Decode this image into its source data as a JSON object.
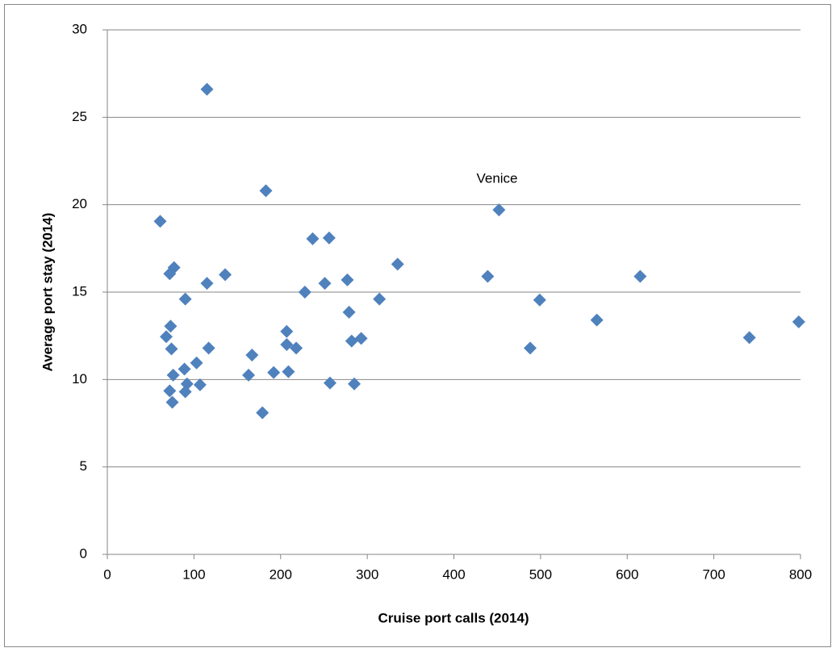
{
  "chart_data": {
    "type": "scatter",
    "x_label": "Cruise port calls (2014)",
    "y_label": "Average port stay (2014)",
    "annotation": "Venice",
    "color": "#4f81bd",
    "grid": true,
    "xlim": [
      0,
      800
    ],
    "xticks": [
      0,
      100,
      200,
      300,
      400,
      500,
      600,
      700,
      800
    ],
    "ylim": [
      0,
      30
    ],
    "yticks": [
      0,
      5,
      10,
      15,
      20,
      25,
      30
    ],
    "x": [
      115,
      183,
      452,
      61,
      237,
      256,
      77,
      72,
      335,
      439,
      615,
      136,
      115,
      277,
      251,
      228,
      90,
      314,
      499,
      565,
      279,
      73,
      798,
      741,
      68,
      293,
      282,
      207,
      207,
      218,
      117,
      74,
      488,
      167,
      103,
      89,
      76,
      163,
      192,
      209,
      92,
      107,
      257,
      285,
      72,
      90,
      75,
      179
    ],
    "y": [
      26.6,
      20.8,
      19.7,
      19.05,
      18.05,
      18.1,
      16.4,
      16.05,
      16.6,
      15.9,
      15.9,
      16.0,
      15.5,
      15.7,
      15.5,
      15.0,
      14.6,
      14.6,
      14.55,
      13.4,
      13.85,
      13.05,
      13.3,
      12.4,
      12.45,
      12.35,
      12.2,
      12.75,
      12.0,
      11.8,
      11.8,
      11.75,
      11.8,
      11.4,
      10.95,
      10.6,
      10.25,
      10.25,
      10.4,
      10.45,
      9.75,
      9.7,
      9.8,
      9.75,
      9.35,
      9.3,
      8.7,
      8.1
    ]
  }
}
